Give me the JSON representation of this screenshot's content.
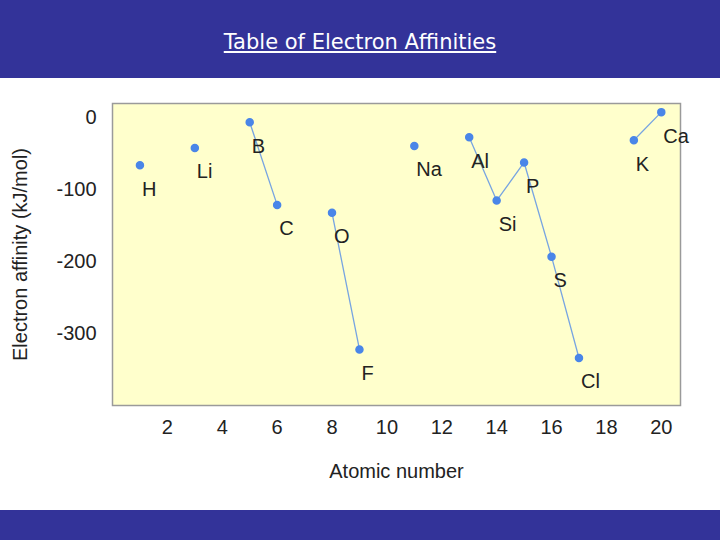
{
  "chart_data": {
    "type": "line",
    "title": "Table of Electron Affinities",
    "x_label": "Atomic number",
    "y_label": "Electron affinity (kJ/mol)",
    "x": [
      1,
      2,
      3,
      4,
      5,
      6,
      7,
      8,
      9,
      10,
      11,
      12,
      13,
      14,
      15,
      16,
      17,
      18,
      19,
      20
    ],
    "values": [
      -66,
      null,
      -42,
      null,
      -6,
      -121,
      null,
      -132,
      -322,
      null,
      -39,
      null,
      -27,
      -115,
      -62,
      -193,
      -334,
      null,
      -31,
      8
    ],
    "point_labels": [
      "H",
      null,
      "Li",
      null,
      "B",
      "C",
      null,
      "O",
      "F",
      null,
      "Na",
      null,
      "Al",
      "Si",
      "P",
      "S",
      "Cl",
      null,
      "K",
      "Ca"
    ],
    "xlim": [
      0,
      20.7
    ],
    "ylim": [
      -400,
      20
    ],
    "xticks": [
      2,
      4,
      6,
      8,
      10,
      12,
      14,
      16,
      18,
      20
    ],
    "yticks": [
      0,
      -100,
      -200,
      -300
    ],
    "color": "#4a86e8",
    "marker": "circle",
    "grid": false
  }
}
